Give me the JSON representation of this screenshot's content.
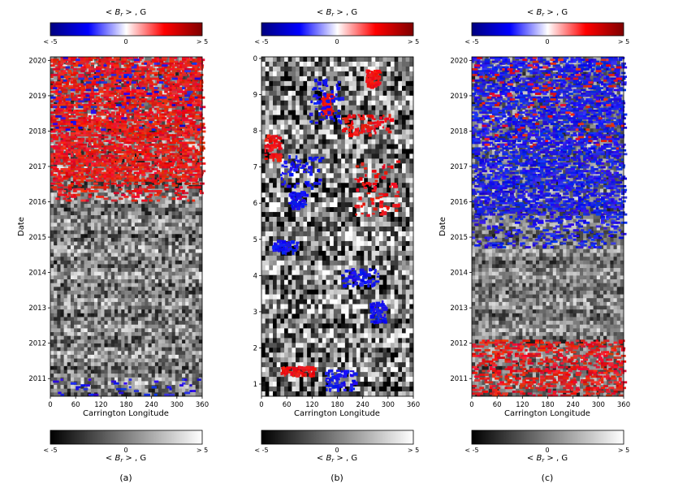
{
  "colorbar_ticks": [
    "< -5",
    "0",
    "> 5"
  ],
  "colorbar_label_prefix": "< ",
  "colorbar_label_b": "B",
  "colorbar_label_r": "r",
  "colorbar_label_suffix": " > , G",
  "colors": {
    "diverging": [
      "#00007f",
      "#0000ff",
      "#ffffff",
      "#ff0000",
      "#7f0000"
    ],
    "grayscale": [
      "#000000",
      "#ffffff"
    ]
  },
  "chart_data": [
    {
      "panel_label": "(a)",
      "type": "heatmap",
      "x": {
        "label": "Carrington Longitude",
        "ticks": [
          0,
          60,
          120,
          180,
          240,
          300,
          360
        ],
        "lim": [
          0,
          360
        ]
      },
      "y": {
        "label": "Date",
        "ticks": [
          "2011",
          "2012",
          "2013",
          "2014",
          "2015",
          "2016",
          "2017",
          "2018",
          "2019",
          "2020"
        ],
        "lim": [
          2010.5,
          2020.1
        ]
      },
      "overlay_color": "red",
      "color_range": [
        -5,
        5
      ],
      "description_regions": [
        {
          "y": [
            2016.0,
            2020.1
          ],
          "color": "red"
        },
        {
          "y": [
            2010.5,
            2011.0
          ],
          "color": "blue"
        }
      ]
    },
    {
      "panel_label": "(b)",
      "type": "heatmap",
      "x": {
        "label": "Carrington Longitude",
        "ticks": [
          0,
          60,
          120,
          180,
          240,
          300,
          360
        ],
        "lim": [
          0,
          360
        ]
      },
      "y": {
        "label": "",
        "ticks": [
          "0",
          "9",
          "8",
          "7",
          "6",
          "5",
          "4",
          "3",
          "2",
          "1"
        ],
        "lim": [
          0.5,
          10
        ]
      },
      "color_range": [
        -5,
        5
      ]
    },
    {
      "panel_label": "(c)",
      "type": "heatmap",
      "x": {
        "label": "Carrington Longitude",
        "ticks": [
          0,
          60,
          120,
          180,
          240,
          300,
          360
        ],
        "lim": [
          0,
          360
        ]
      },
      "y": {
        "label": "Date",
        "ticks": [
          "2011",
          "2012",
          "2013",
          "2014",
          "2015",
          "2016",
          "2017",
          "2018",
          "2019",
          "2020"
        ],
        "lim": [
          2010.5,
          2020.1
        ]
      },
      "overlay_color": "blue",
      "color_range": [
        -5,
        5
      ],
      "description_regions": [
        {
          "y": [
            2015.0,
            2020.1
          ],
          "color": "blue"
        },
        {
          "y": [
            2010.5,
            2012.0
          ],
          "color": "red"
        }
      ]
    }
  ]
}
